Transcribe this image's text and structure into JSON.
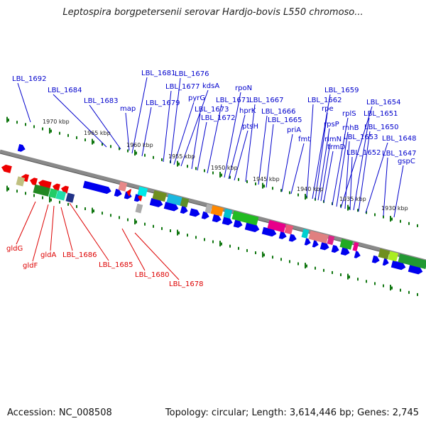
{
  "header": {
    "title": "Leptospira borgpetersenii serovar Hardjo-bovis L550 chromoso..."
  },
  "footer": {
    "accession": "Accession: NC_008508",
    "summary": "Topology: circular; Length: 3,614,446 bp; Genes: 2,745"
  },
  "colors": {
    "forward": "#0000ee",
    "reverse": "#ee0000",
    "backbone": "#888888",
    "ticks": "#117711"
  },
  "map": {
    "kbp_ticks": [
      {
        "label": "1970 kbp"
      },
      {
        "label": "1965 kbp"
      },
      {
        "label": "1960 kbp"
      },
      {
        "label": "1955 kbp"
      },
      {
        "label": "1950 kbp"
      },
      {
        "label": "1945 kbp"
      },
      {
        "label": "1940 kbp"
      },
      {
        "label": "1935 kbp"
      },
      {
        "label": "1930 kbp"
      }
    ],
    "forward_labels": [
      "LBL_1692",
      "LBL_1684",
      "LBL_1683",
      "map",
      "LBL_1681",
      "LBL_1679",
      "LBL_1677",
      "LBL_1676",
      "pyrG",
      "kdsA",
      "LBL_1673",
      "LBL_1672",
      "LBL_1671",
      "rpoN",
      "hprK",
      "ptsH",
      "LBL_1667",
      "LBL_1666",
      "LBL_1665",
      "priA",
      "fmt",
      "LBL_1662",
      "LBL_1659",
      "rpe",
      "rpsP",
      "rlmN",
      "trmD",
      "rplS",
      "rnhB",
      "LBL_1654",
      "LBL_1653",
      "LBL_1652",
      "LBL_1651",
      "LBL_1650",
      "LBL_1648",
      "LBL_1647",
      "gspC"
    ],
    "reverse_labels": [
      "gldG",
      "gldF",
      "gldA",
      "LBL_1686",
      "LBL_1685",
      "LBL_1680",
      "LBL_1678"
    ]
  }
}
